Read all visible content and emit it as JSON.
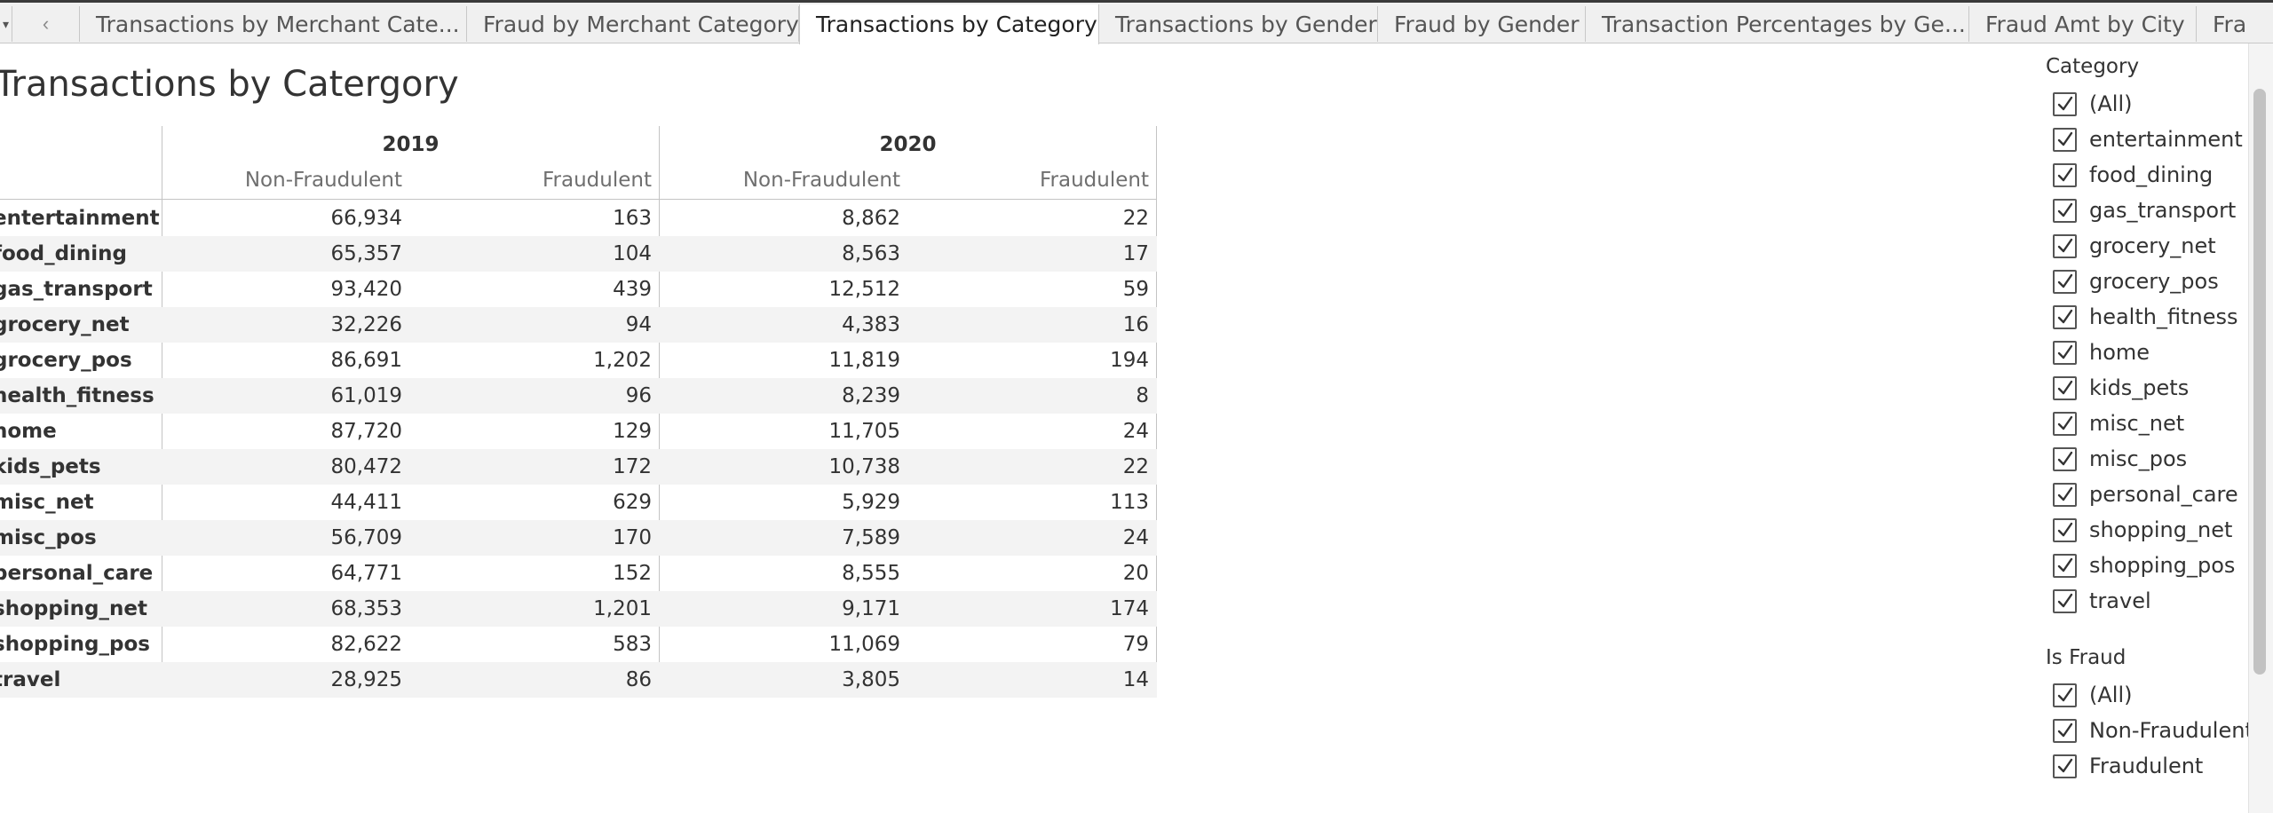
{
  "tabs": [
    "Transactions by Merchant Cate...",
    "Fraud by Merchant Category",
    "Transactions by Category",
    "Transactions by Gender",
    "Fraud by Gender",
    "Transaction Percentages by Ge...",
    "Fraud Amt by City",
    "Frau"
  ],
  "active_tab_index": 2,
  "title": "Transactions by Catergory",
  "table": {
    "years": [
      "2019",
      "2020"
    ],
    "column_headers": [
      "Non-Fraudulent",
      "Fraudulent",
      "Non-Fraudulent",
      "Fraudulent"
    ],
    "rows": [
      {
        "label": "entertainment",
        "values": [
          "66,934",
          "163",
          "8,862",
          "22"
        ]
      },
      {
        "label": "food_dining",
        "values": [
          "65,357",
          "104",
          "8,563",
          "17"
        ]
      },
      {
        "label": "gas_transport",
        "values": [
          "93,420",
          "439",
          "12,512",
          "59"
        ]
      },
      {
        "label": "grocery_net",
        "values": [
          "32,226",
          "94",
          "4,383",
          "16"
        ]
      },
      {
        "label": "grocery_pos",
        "values": [
          "86,691",
          "1,202",
          "11,819",
          "194"
        ]
      },
      {
        "label": "health_fitness",
        "values": [
          "61,019",
          "96",
          "8,239",
          "8"
        ]
      },
      {
        "label": "home",
        "values": [
          "87,720",
          "129",
          "11,705",
          "24"
        ]
      },
      {
        "label": "kids_pets",
        "values": [
          "80,472",
          "172",
          "10,738",
          "22"
        ]
      },
      {
        "label": "misc_net",
        "values": [
          "44,411",
          "629",
          "5,929",
          "113"
        ]
      },
      {
        "label": "misc_pos",
        "values": [
          "56,709",
          "170",
          "7,589",
          "24"
        ]
      },
      {
        "label": "personal_care",
        "values": [
          "64,771",
          "152",
          "8,555",
          "20"
        ]
      },
      {
        "label": "shopping_net",
        "values": [
          "68,353",
          "1,201",
          "9,171",
          "174"
        ]
      },
      {
        "label": "shopping_pos",
        "values": [
          "82,622",
          "583",
          "11,069",
          "79"
        ]
      },
      {
        "label": "travel",
        "values": [
          "28,925",
          "86",
          "3,805",
          "14"
        ]
      }
    ]
  },
  "filters": {
    "category": {
      "title": "Category",
      "items": [
        {
          "label": "(All)",
          "checked": true
        },
        {
          "label": "entertainment",
          "checked": true
        },
        {
          "label": "food_dining",
          "checked": true
        },
        {
          "label": "gas_transport",
          "checked": true
        },
        {
          "label": "grocery_net",
          "checked": true
        },
        {
          "label": "grocery_pos",
          "checked": true
        },
        {
          "label": "health_fitness",
          "checked": true
        },
        {
          "label": "home",
          "checked": true
        },
        {
          "label": "kids_pets",
          "checked": true
        },
        {
          "label": "misc_net",
          "checked": true
        },
        {
          "label": "misc_pos",
          "checked": true
        },
        {
          "label": "personal_care",
          "checked": true
        },
        {
          "label": "shopping_net",
          "checked": true
        },
        {
          "label": "shopping_pos",
          "checked": true
        },
        {
          "label": "travel",
          "checked": true
        }
      ]
    },
    "is_fraud": {
      "title": "Is Fraud",
      "items": [
        {
          "label": "(All)",
          "checked": true
        },
        {
          "label": "Non-Fraudulent",
          "checked": true
        },
        {
          "label": "Fraudulent",
          "checked": true
        }
      ]
    }
  },
  "icons": {
    "tab_menu": "triangle-down-icon",
    "tab_prev": "chevron-left-icon",
    "checkbox": "checkmark-icon"
  },
  "colors": {
    "tab_bar": "#f0f0f0",
    "active_tab": "#ffffff",
    "alt_row": "#f3f3f3",
    "grid_line": "#c4c4c4",
    "header_text": "#6f6f6f",
    "text": "#333333"
  }
}
